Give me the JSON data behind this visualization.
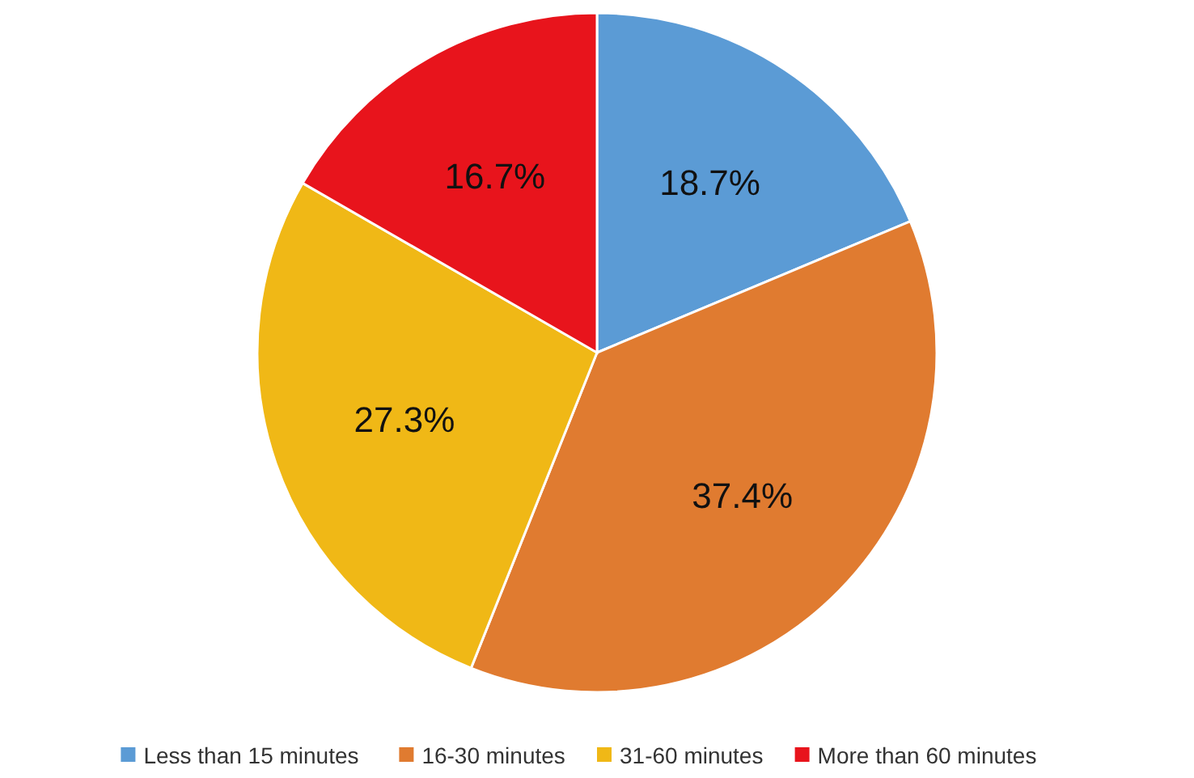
{
  "chart_data": {
    "type": "pie",
    "categories": [
      "Less than 15 minutes",
      "16-30 minutes",
      "31-60 minutes",
      "More than 60 minutes"
    ],
    "values": [
      18.7,
      37.4,
      27.3,
      16.7
    ],
    "value_labels": [
      "18.7%",
      "37.4%",
      "27.3%",
      "16.7%"
    ],
    "colors": [
      "#5b9bd5",
      "#e07b30",
      "#f0b816",
      "#e8141c"
    ],
    "legend": "bottom"
  }
}
